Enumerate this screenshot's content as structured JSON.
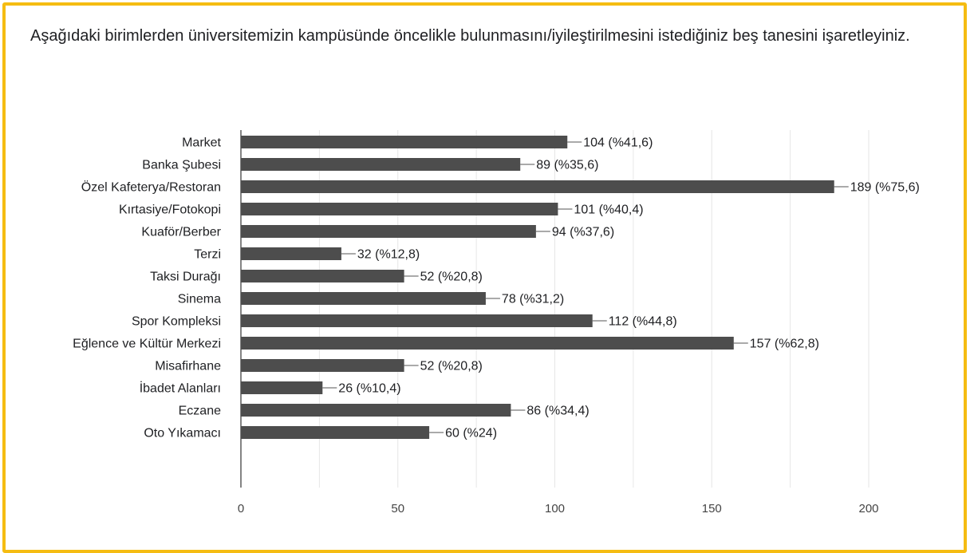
{
  "question": {
    "text": "Aşağıdaki birimlerden üniversitemizin kampüsünde öncelikle bulunmasını/iyileştirilmesini istediğiniz beş tanesini işaretleyiniz."
  },
  "colors": {
    "bar": "#4d4d4d",
    "frame": "#f5bc12",
    "grid": "#e6e6e6",
    "text": "#202124"
  },
  "chart_data": {
    "type": "bar",
    "orientation": "horizontal",
    "categories": [
      "Market",
      "Banka Şubesi",
      "Özel Kafeterya/Restoran",
      "Kırtasiye/Fotokopi",
      "Kuaför/Berber",
      "Terzi",
      "Taksi Durağı",
      "Sinema",
      "Spor Kompleksi",
      "Eğlence ve Kültür Merkezi",
      "Misafirhane",
      "İbadet Alanları",
      "Eczane",
      "Oto Yıkamacı"
    ],
    "values": [
      104,
      89,
      189,
      101,
      94,
      32,
      52,
      78,
      112,
      157,
      52,
      26,
      86,
      60
    ],
    "data_labels": [
      "104 (%41,6)",
      "89 (%35,6)",
      "189 (%75,6)",
      "101 (%40,4)",
      "94 (%37,6)",
      "32 (%12,8)",
      "52 (%20,8)",
      "78 (%31,2)",
      "112 (%44,8)",
      "157 (%62,8)",
      "52 (%20,8)",
      "26 (%10,4)",
      "86 (%34,4)",
      "60 (%24)"
    ],
    "xlim": [
      0,
      200
    ],
    "xticks": [
      0,
      50,
      100,
      150,
      200
    ],
    "grid": true,
    "title": "",
    "xlabel": "",
    "ylabel": ""
  }
}
